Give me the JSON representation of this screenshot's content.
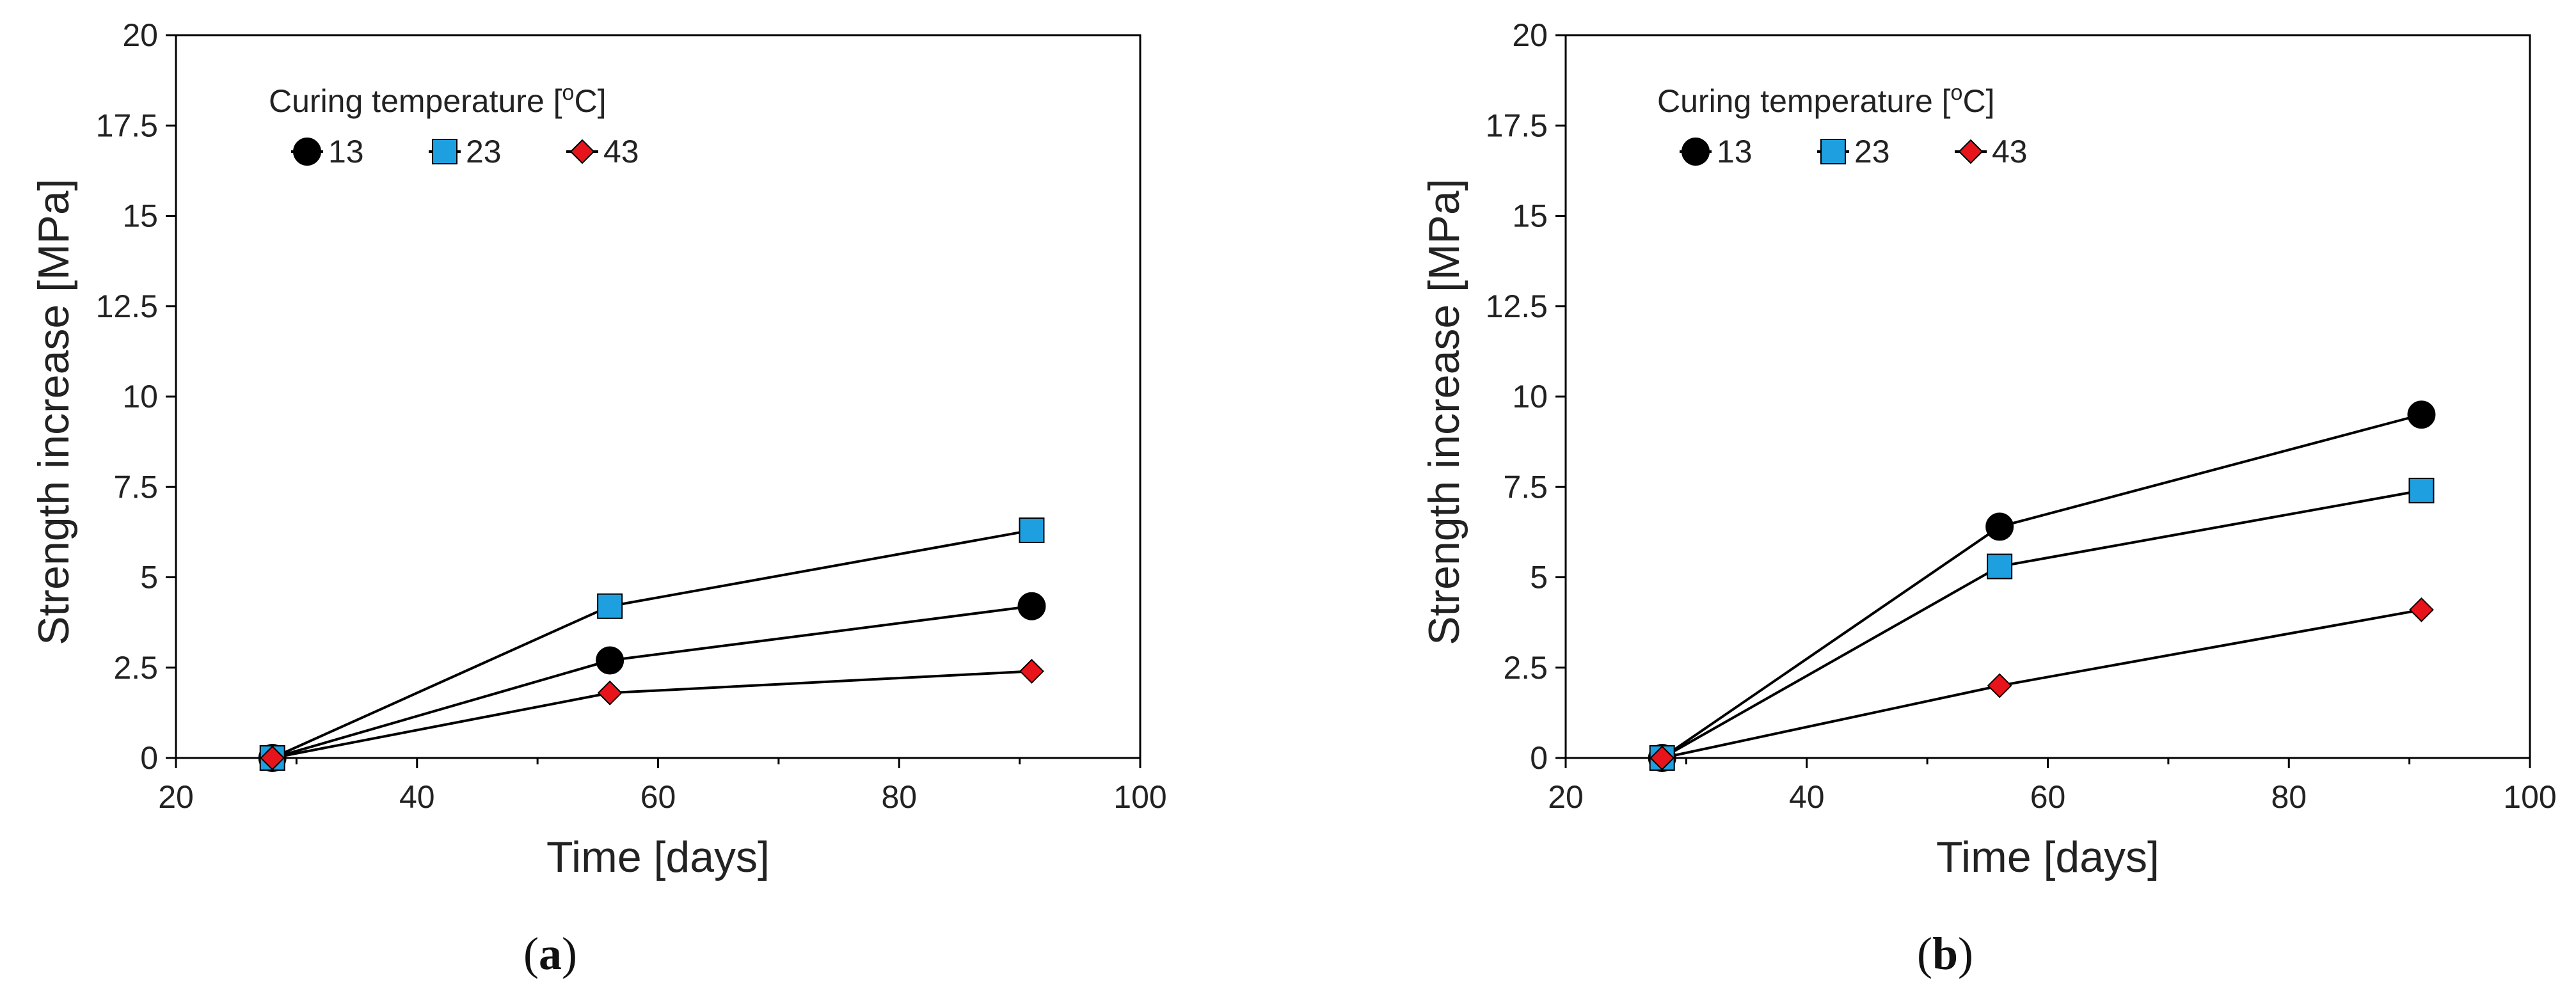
{
  "chart_data": [
    {
      "type": "line",
      "panel_label": "a",
      "title": "",
      "xlabel": "Time [days]",
      "ylabel": "Strength increase [MPa]",
      "xlim": [
        20,
        100
      ],
      "ylim": [
        0,
        20
      ],
      "xticks": [
        20,
        40,
        60,
        80,
        100
      ],
      "yticks": [
        0,
        2.5,
        5,
        7.5,
        10,
        12.5,
        15,
        17.5,
        20
      ],
      "xtick_labels": [
        "20",
        "40",
        "60",
        "80",
        "100"
      ],
      "ytick_labels": [
        "0",
        "2.5",
        "5",
        "7.5",
        "10",
        "12.5",
        "15",
        "17.5",
        "20"
      ],
      "legend_title": "Curing temperature [°C]",
      "legend_title_main": "Curing temperature [",
      "legend_title_sup": "o",
      "legend_title_end": "C]",
      "series": [
        {
          "name": "13",
          "x": [
            28,
            56,
            91
          ],
          "y": [
            0,
            2.7,
            4.2
          ],
          "marker": "circle",
          "color": "#000000"
        },
        {
          "name": "23",
          "x": [
            28,
            56,
            91
          ],
          "y": [
            0,
            4.2,
            6.3
          ],
          "marker": "square",
          "color": "#1ea0e0"
        },
        {
          "name": "43",
          "x": [
            28,
            56,
            91
          ],
          "y": [
            0,
            1.8,
            2.4
          ],
          "marker": "diamond",
          "color": "#e8141b"
        }
      ]
    },
    {
      "type": "line",
      "panel_label": "b",
      "title": "",
      "xlabel": "Time [days]",
      "ylabel": "Strength increase [MPa]",
      "xlim": [
        20,
        100
      ],
      "ylim": [
        0,
        20
      ],
      "xticks": [
        20,
        40,
        60,
        80,
        100
      ],
      "yticks": [
        0,
        2.5,
        5,
        7.5,
        10,
        12.5,
        15,
        17.5,
        20
      ],
      "xtick_labels": [
        "20",
        "40",
        "60",
        "80",
        "100"
      ],
      "ytick_labels": [
        "0",
        "2.5",
        "5",
        "7.5",
        "10",
        "12.5",
        "15",
        "17.5",
        "20"
      ],
      "legend_title": "Curing temperature [°C]",
      "legend_title_main": "Curing temperature [",
      "legend_title_sup": "o",
      "legend_title_end": "C]",
      "series": [
        {
          "name": "13",
          "x": [
            28,
            56,
            91
          ],
          "y": [
            0,
            6.4,
            9.5
          ],
          "marker": "circle",
          "color": "#000000"
        },
        {
          "name": "23",
          "x": [
            28,
            56,
            91
          ],
          "y": [
            0,
            5.3,
            7.4
          ],
          "marker": "square",
          "color": "#1ea0e0"
        },
        {
          "name": "43",
          "x": [
            28,
            56,
            91
          ],
          "y": [
            0,
            2.0,
            4.1
          ],
          "marker": "diamond",
          "color": "#e8141b"
        }
      ]
    }
  ],
  "captions": {
    "a": {
      "open": "(",
      "letter": "a",
      "close": ")"
    },
    "b": {
      "open": "(",
      "letter": "b",
      "close": ")"
    }
  }
}
